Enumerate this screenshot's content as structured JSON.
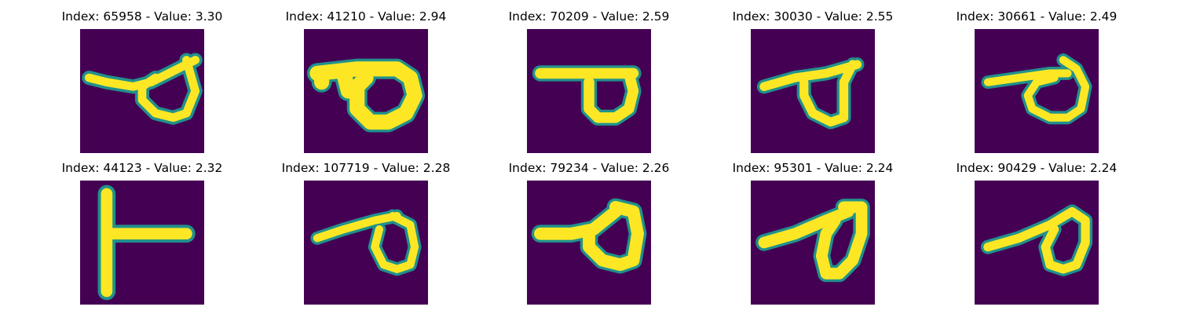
{
  "colors": {
    "background": "#440154",
    "mid": "#21918c",
    "highlight": "#fde725"
  },
  "samples": [
    {
      "title": "Index: 65958 - Value: 3.30",
      "glyph": "loop-with-left-tail"
    },
    {
      "title": "Index: 41210 - Value: 2.94",
      "glyph": "bold-loop-with-bar"
    },
    {
      "title": "Index: 70209 - Value: 2.59",
      "glyph": "loop-with-top-bar"
    },
    {
      "title": "Index: 30030 - Value: 2.55",
      "glyph": "triangle-loop-with-tail"
    },
    {
      "title": "Index: 30661 - Value: 2.49",
      "glyph": "circle-loop-with-tail"
    },
    {
      "title": "Index: 44123 - Value: 2.32",
      "glyph": "sideways-t"
    },
    {
      "title": "Index: 107719 - Value: 2.28",
      "glyph": "small-loop-with-tail"
    },
    {
      "title": "Index: 79234 - Value: 2.26",
      "glyph": "bold-triangle-loop"
    },
    {
      "title": "Index: 95301 - Value: 2.24",
      "glyph": "slanted-loop-with-tail"
    },
    {
      "title": "Index: 90429 - Value: 2.24",
      "glyph": "slanted-loop-with-long-tail"
    }
  ]
}
